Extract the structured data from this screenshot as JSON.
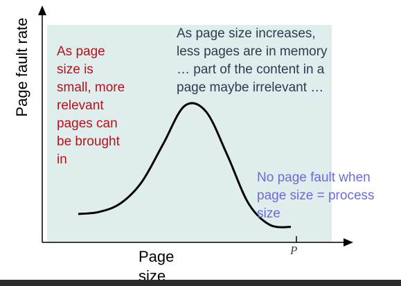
{
  "chart_data": {
    "type": "line",
    "title": "",
    "xlabel_lines": [
      "Page",
      "size"
    ],
    "ylabel": "Page fault rate",
    "x_tick_label": "P",
    "x": [
      0.0,
      0.1,
      0.2,
      0.3,
      0.4,
      0.5,
      0.6,
      0.7,
      0.8,
      0.9,
      1.0
    ],
    "y": [
      0.0,
      0.02,
      0.1,
      0.3,
      0.65,
      1.0,
      0.95,
      0.55,
      0.1,
      -0.1,
      -0.12
    ],
    "annotations": {
      "small_pages": [
        "As page",
        "size is",
        "small, more",
        "relevant",
        "pages can",
        "be brought",
        "in"
      ],
      "large_pages": [
        "As page size increases,",
        "less pages are in memory",
        "… part of the content in a",
        "page maybe irrelevant …"
      ],
      "no_fault": [
        "No page fault when",
        "page size = process",
        "size"
      ]
    },
    "colors": {
      "background_region": "#e0eded",
      "curve": "#000000",
      "small_pages_text": "#b5121b",
      "large_pages_text": "#2e3b4e",
      "no_fault_text": "#6b6bd6"
    },
    "grid": false,
    "legend": "none"
  }
}
